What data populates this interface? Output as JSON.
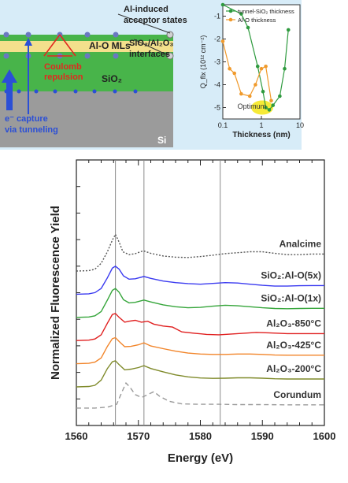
{
  "schematic": {
    "label_acceptor_line1": "Al-induced",
    "label_acceptor_line2": "acceptor states",
    "label_alo": "Al-O MLs",
    "label_interfaces_line1": "SiO₂/Al₂O₃",
    "label_interfaces_line2": "interfaces",
    "label_coulomb_line1": "Coulomb",
    "label_coulomb_line2": "repulsion",
    "label_sio2": "SiO₂",
    "label_capture_line1": "e⁻ capture",
    "label_capture_line2": "via tunneling",
    "label_si": "Si",
    "colors": {
      "sio2": "#48b44a",
      "alo": "#f3e08c",
      "si": "#9b9b9b",
      "electron": "#2b4fd6",
      "repulsion": "#e2281f"
    }
  },
  "chart_data": [
    {
      "type": "line",
      "xlabel": "Thickness (nm)",
      "ylabel": "Q_flx (10¹² cm⁻²)",
      "xscale": "log",
      "xlim": [
        0.1,
        10
      ],
      "ylim": [
        -5.5,
        -0.5
      ],
      "x_ticks": [
        "0.1",
        "1",
        "10"
      ],
      "y_ticks": [
        "-1",
        "-2",
        "-3",
        "-4",
        "-5"
      ],
      "legend_position": "top-right",
      "annotation": "Optimum",
      "series": [
        {
          "name": "tunnel-SiO₂ thickness",
          "color": "#2e9a3e",
          "x": [
            0.1,
            0.3,
            0.45,
            0.8,
            1.1,
            1.3,
            1.6,
            2.0,
            3.0,
            4.0,
            5.0
          ],
          "y": [
            -0.5,
            -0.9,
            -1.5,
            -3.2,
            -4.3,
            -5.0,
            -5.1,
            -4.9,
            -4.5,
            -3.3,
            -1.6
          ]
        },
        {
          "name": "Al-O thickness",
          "color": "#f09a2c",
          "x": [
            0.1,
            0.15,
            0.2,
            0.3,
            0.5,
            0.7,
            1.0,
            1.3,
            1.8
          ],
          "y": [
            -2.1,
            -3.3,
            -3.5,
            -4.4,
            -4.5,
            -4.0,
            -3.3,
            -3.2,
            -4.7
          ]
        }
      ]
    },
    {
      "type": "line",
      "xlabel": "Energy (eV)",
      "ylabel": "Normalized Fluorescence Yield",
      "xlim": [
        1560,
        1600
      ],
      "x_ticks": [
        "1560",
        "1570",
        "1580",
        "1590",
        "1600"
      ],
      "vlines": [
        1566.3,
        1570.9,
        1583.2
      ],
      "series": [
        {
          "name": "Analcime",
          "color": "#555555",
          "dash": "2,2",
          "offset": 6.0,
          "points": [
            [
              1560,
              0
            ],
            [
              1562,
              0.02
            ],
            [
              1563,
              0.1
            ],
            [
              1564,
              0.4
            ],
            [
              1565,
              1.0
            ],
            [
              1565.8,
              1.6
            ],
            [
              1566.3,
              1.9
            ],
            [
              1566.9,
              1.5
            ],
            [
              1567.5,
              1.0
            ],
            [
              1568.5,
              0.85
            ],
            [
              1569.5,
              0.9
            ],
            [
              1570.8,
              1.05
            ],
            [
              1572,
              0.92
            ],
            [
              1574,
              0.78
            ],
            [
              1576,
              0.72
            ],
            [
              1578,
              0.7
            ],
            [
              1580,
              0.75
            ],
            [
              1582,
              0.82
            ],
            [
              1584,
              0.9
            ],
            [
              1586,
              0.95
            ],
            [
              1588,
              1.0
            ],
            [
              1590,
              1.0
            ],
            [
              1592,
              0.92
            ],
            [
              1594,
              0.85
            ],
            [
              1596,
              0.85
            ],
            [
              1598,
              0.88
            ],
            [
              1600,
              0.88
            ]
          ]
        },
        {
          "name": "SiO₂:Al-O(5x)",
          "color": "#3a3af0",
          "dash": "",
          "offset": 4.8,
          "points": [
            [
              1560,
              0
            ],
            [
              1562,
              0.02
            ],
            [
              1563,
              0.08
            ],
            [
              1564,
              0.3
            ],
            [
              1565,
              0.85
            ],
            [
              1565.8,
              1.35
            ],
            [
              1566.3,
              1.45
            ],
            [
              1566.9,
              1.3
            ],
            [
              1567.6,
              0.95
            ],
            [
              1568.5,
              0.78
            ],
            [
              1569.5,
              0.8
            ],
            [
              1570.9,
              0.92
            ],
            [
              1572,
              0.82
            ],
            [
              1574,
              0.68
            ],
            [
              1576,
              0.6
            ],
            [
              1578,
              0.55
            ],
            [
              1580,
              0.52
            ],
            [
              1582,
              0.56
            ],
            [
              1584,
              0.6
            ],
            [
              1586,
              0.58
            ],
            [
              1588,
              0.52
            ],
            [
              1590,
              0.46
            ],
            [
              1592,
              0.42
            ],
            [
              1594,
              0.42
            ],
            [
              1596,
              0.44
            ],
            [
              1598,
              0.45
            ],
            [
              1600,
              0.45
            ]
          ]
        },
        {
          "name": "SiO₂:Al-O(1x)",
          "color": "#35a53a",
          "dash": "",
          "offset": 3.6,
          "points": [
            [
              1560,
              0
            ],
            [
              1562,
              0.02
            ],
            [
              1563,
              0.08
            ],
            [
              1564,
              0.3
            ],
            [
              1565,
              0.9
            ],
            [
              1565.8,
              1.4
            ],
            [
              1566.3,
              1.5
            ],
            [
              1566.9,
              1.3
            ],
            [
              1567.6,
              0.92
            ],
            [
              1568.5,
              0.75
            ],
            [
              1569.5,
              0.78
            ],
            [
              1570.9,
              0.9
            ],
            [
              1572,
              0.8
            ],
            [
              1574,
              0.65
            ],
            [
              1576,
              0.55
            ],
            [
              1578,
              0.5
            ],
            [
              1580,
              0.52
            ],
            [
              1582,
              0.58
            ],
            [
              1584,
              0.63
            ],
            [
              1586,
              0.6
            ],
            [
              1588,
              0.55
            ],
            [
              1590,
              0.5
            ],
            [
              1592,
              0.46
            ],
            [
              1594,
              0.45
            ],
            [
              1596,
              0.46
            ],
            [
              1598,
              0.47
            ],
            [
              1600,
              0.47
            ]
          ]
        },
        {
          "name": "Al₂O₃-850°C",
          "color": "#e01f1f",
          "dash": "",
          "offset": 2.4,
          "points": [
            [
              1560,
              0
            ],
            [
              1562,
              0.02
            ],
            [
              1563,
              0.08
            ],
            [
              1564,
              0.3
            ],
            [
              1565,
              0.9
            ],
            [
              1565.8,
              1.35
            ],
            [
              1566.3,
              1.4
            ],
            [
              1566.9,
              1.2
            ],
            [
              1567.8,
              0.95
            ],
            [
              1568.5,
              1.0
            ],
            [
              1569.5,
              1.05
            ],
            [
              1570.5,
              0.95
            ],
            [
              1571.5,
              1.0
            ],
            [
              1572.5,
              0.85
            ],
            [
              1574,
              0.75
            ],
            [
              1575.5,
              0.7
            ],
            [
              1577,
              0.45
            ],
            [
              1579,
              0.38
            ],
            [
              1581,
              0.32
            ],
            [
              1583,
              0.3
            ],
            [
              1585,
              0.34
            ],
            [
              1587,
              0.38
            ],
            [
              1589,
              0.42
            ],
            [
              1591,
              0.4
            ],
            [
              1594,
              0.36
            ],
            [
              1597,
              0.36
            ],
            [
              1600,
              0.36
            ]
          ]
        },
        {
          "name": "Al₂O₃-425°C",
          "color": "#f2852a",
          "dash": "",
          "offset": 1.2,
          "points": [
            [
              1560,
              0
            ],
            [
              1562,
              0.02
            ],
            [
              1563,
              0.08
            ],
            [
              1564,
              0.3
            ],
            [
              1565,
              0.9
            ],
            [
              1565.8,
              1.3
            ],
            [
              1566.3,
              1.35
            ],
            [
              1566.9,
              1.15
            ],
            [
              1567.8,
              0.88
            ],
            [
              1568.8,
              0.9
            ],
            [
              1570,
              0.98
            ],
            [
              1570.9,
              1.08
            ],
            [
              1572,
              0.92
            ],
            [
              1574,
              0.78
            ],
            [
              1576,
              0.65
            ],
            [
              1578,
              0.55
            ],
            [
              1580,
              0.5
            ],
            [
              1582,
              0.48
            ],
            [
              1584,
              0.48
            ],
            [
              1586,
              0.5
            ],
            [
              1588,
              0.5
            ],
            [
              1590,
              0.48
            ],
            [
              1592,
              0.45
            ],
            [
              1594,
              0.44
            ],
            [
              1596,
              0.44
            ],
            [
              1598,
              0.44
            ],
            [
              1600,
              0.44
            ]
          ]
        },
        {
          "name": "Al₂O₃-200°C",
          "color": "#7f8a2a",
          "dash": "",
          "offset": 0.0,
          "points": [
            [
              1560,
              0
            ],
            [
              1562,
              0.02
            ],
            [
              1563,
              0.08
            ],
            [
              1564,
              0.35
            ],
            [
              1565,
              0.95
            ],
            [
              1565.8,
              1.3
            ],
            [
              1566.3,
              1.35
            ],
            [
              1566.9,
              1.15
            ],
            [
              1567.8,
              0.88
            ],
            [
              1568.8,
              0.92
            ],
            [
              1570,
              1.0
            ],
            [
              1570.9,
              1.1
            ],
            [
              1572,
              0.95
            ],
            [
              1574,
              0.78
            ],
            [
              1576,
              0.62
            ],
            [
              1578,
              0.52
            ],
            [
              1580,
              0.46
            ],
            [
              1582,
              0.44
            ],
            [
              1584,
              0.45
            ],
            [
              1586,
              0.47
            ],
            [
              1588,
              0.47
            ],
            [
              1590,
              0.45
            ],
            [
              1592,
              0.42
            ],
            [
              1594,
              0.41
            ],
            [
              1596,
              0.41
            ],
            [
              1598,
              0.41
            ],
            [
              1600,
              0.41
            ]
          ]
        },
        {
          "name": "Corundum",
          "color": "#9a9a9a",
          "dash": "6,4",
          "offset": -1.1,
          "points": [
            [
              1560,
              0
            ],
            [
              1563,
              0
            ],
            [
              1565,
              0.05
            ],
            [
              1566.5,
              0.2
            ],
            [
              1567.3,
              0.8
            ],
            [
              1568,
              1.3
            ],
            [
              1568.6,
              1.1
            ],
            [
              1569.5,
              0.7
            ],
            [
              1570.5,
              0.55
            ],
            [
              1571.5,
              0.7
            ],
            [
              1572.5,
              0.85
            ],
            [
              1573.5,
              0.6
            ],
            [
              1575,
              0.35
            ],
            [
              1577,
              0.22
            ],
            [
              1580,
              0.2
            ],
            [
              1583,
              0.2
            ],
            [
              1586,
              0.18
            ],
            [
              1590,
              0.18
            ],
            [
              1594,
              0.17
            ],
            [
              1600,
              0.17
            ]
          ]
        }
      ]
    }
  ]
}
